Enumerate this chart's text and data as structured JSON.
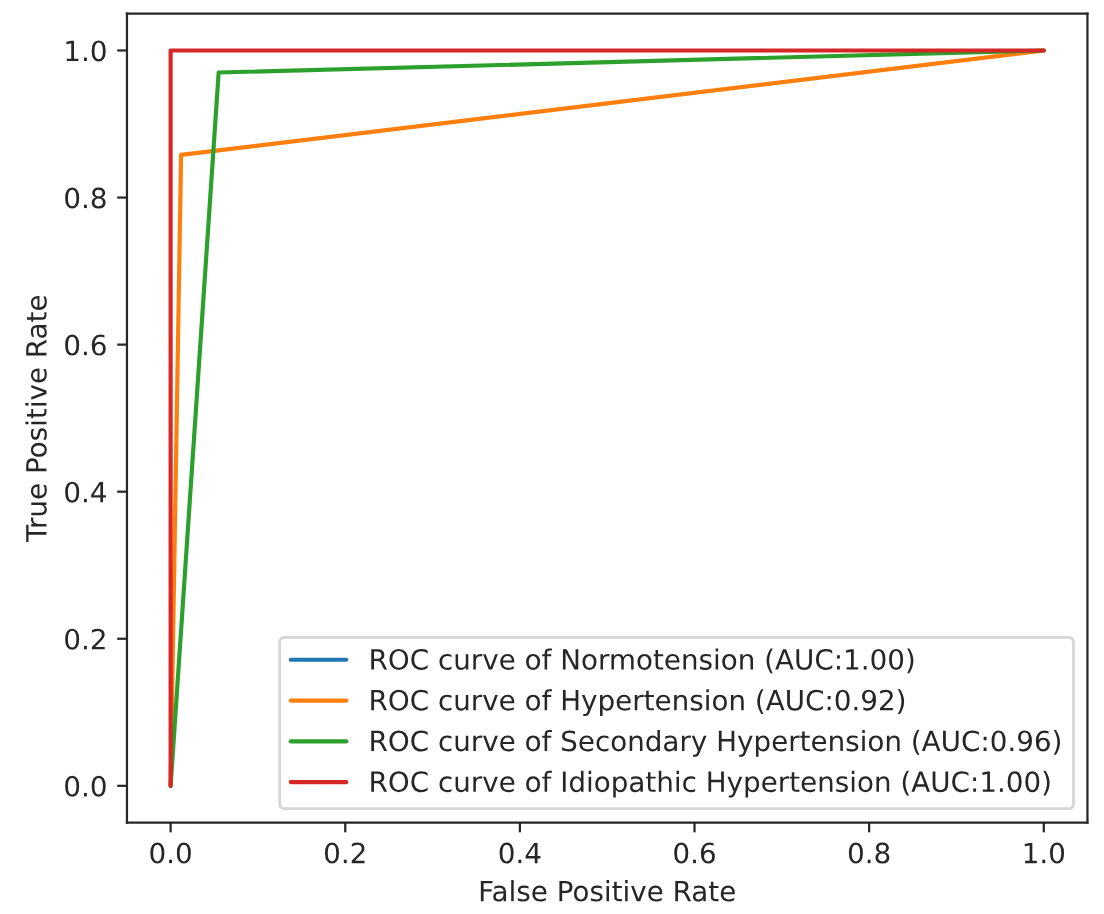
{
  "chart_data": {
    "type": "line",
    "xlabel": "False Positive Rate",
    "ylabel": "True Positive Rate",
    "xlim": [
      -0.05,
      1.05
    ],
    "ylim": [
      -0.05,
      1.05
    ],
    "xticks": [
      {
        "value": 0,
        "label": "0.0"
      },
      {
        "value": 0.2,
        "label": "0.2"
      },
      {
        "value": 0.4,
        "label": "0.4"
      },
      {
        "value": 0.6,
        "label": "0.6"
      },
      {
        "value": 0.8,
        "label": "0.8"
      },
      {
        "value": 1,
        "label": "1.0"
      }
    ],
    "yticks": [
      {
        "value": 0,
        "label": "0.0"
      },
      {
        "value": 0.2,
        "label": "0.2"
      },
      {
        "value": 0.4,
        "label": "0.4"
      },
      {
        "value": 0.6,
        "label": "0.6"
      },
      {
        "value": 0.8,
        "label": "0.8"
      },
      {
        "value": 1,
        "label": "1.0"
      }
    ],
    "legend": "bottom right",
    "grid": false,
    "series": [
      {
        "name": "ROC curve of Normotension (AUC:1.00)",
        "color": "#1f77b4",
        "values": [
          null,
          null,
          null
        ]
      },
      {
        "name": "ROC curve of Hypertension (AUC:0.92)",
        "color": "#ff7f0e",
        "x": [
          0,
          0.012,
          1
        ],
        "values": [
          0,
          0.858,
          1
        ]
      },
      {
        "name": "ROC curve of Secondary Hypertension (AUC:0.96)",
        "color": "#2ca02c",
        "x": [
          0,
          0.055,
          1
        ],
        "values": [
          0,
          0.97,
          1
        ]
      },
      {
        "name": "ROC curve of Idiopathic Hypertension (AUC:1.00)",
        "color": "#d62728",
        "x": [
          0,
          0,
          1
        ],
        "values": [
          0,
          1,
          1
        ]
      }
    ]
  }
}
